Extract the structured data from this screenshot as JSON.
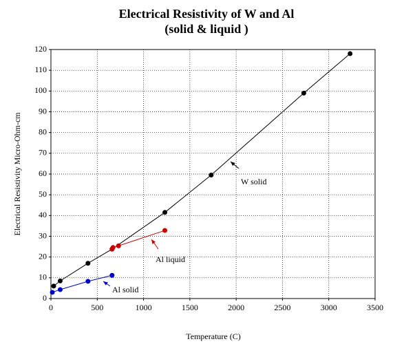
{
  "chart_data": {
    "type": "line",
    "title": "Electrical Resistivity of W and Al",
    "subtitle": "(solid & liquid )",
    "x_label": "Temperature (C)",
    "y_label": "Electrical Resistivity Micro-Ohm-cm",
    "xlim": [
      0,
      3500
    ],
    "xticks": [
      0,
      500,
      1000,
      1500,
      2000,
      2500,
      3000,
      3500
    ],
    "ylim": [
      0,
      120
    ],
    "yticks": [
      0,
      10,
      20,
      30,
      40,
      50,
      60,
      70,
      80,
      90,
      100,
      110,
      120
    ],
    "grid": true,
    "series": [
      {
        "name": "W solid",
        "color": "#000000",
        "x": [
          30,
          100,
          400,
          660,
          1230,
          1730,
          2730,
          3230
        ],
        "values": [
          6,
          8.5,
          17,
          23.8,
          41.5,
          59.5,
          99,
          118
        ]
      },
      {
        "name": "Al liquid",
        "color": "#cc0000",
        "x": [
          660,
          670,
          730,
          1230
        ],
        "values": [
          23.9,
          24.6,
          25.4,
          32.8
        ]
      },
      {
        "name": "Al solid",
        "color": "#0000cc",
        "x": [
          15,
          100,
          400,
          660
        ],
        "values": [
          3,
          4.3,
          8.3,
          11.2
        ]
      }
    ]
  }
}
